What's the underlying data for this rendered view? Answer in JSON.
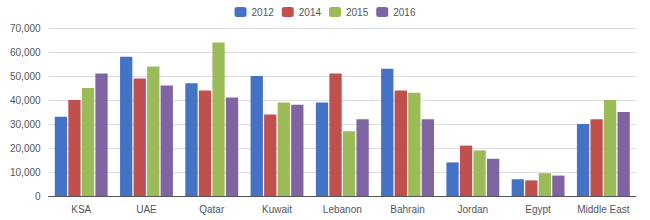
{
  "chart_data": {
    "type": "bar",
    "categories": [
      "KSA",
      "UAE",
      "Qatar",
      "Kuwait",
      "Lebanon",
      "Bahrain",
      "Jordan",
      "Egypt",
      "Middle East"
    ],
    "series": [
      {
        "name": "2012",
        "color": "#4472C4",
        "values": [
          33000,
          58000,
          47000,
          50000,
          39000,
          53000,
          14000,
          7000,
          30000
        ]
      },
      {
        "name": "2014",
        "color": "#C0504D",
        "values": [
          40000,
          49000,
          44000,
          34000,
          51000,
          44000,
          21000,
          6500,
          32000
        ]
      },
      {
        "name": "2015",
        "color": "#9BBB59",
        "values": [
          45000,
          54000,
          64000,
          39000,
          27000,
          43000,
          19000,
          9500,
          40000
        ]
      },
      {
        "name": "2016",
        "color": "#8064A2",
        "values": [
          51000,
          46000,
          41000,
          38000,
          32000,
          32000,
          15500,
          8500,
          35000
        ]
      }
    ],
    "ylim": [
      0,
      70000
    ],
    "yticks": [
      0,
      {
        "value": 10000,
        "label": "10,000"
      },
      {
        "value": 20000,
        "label": "20,000"
      },
      {
        "value": 30000,
        "label": "30,000"
      },
      {
        "value": 40000,
        "label": "40,000"
      },
      {
        "value": 50000,
        "label": "50,000"
      },
      {
        "value": 60000,
        "label": "60,000"
      },
      {
        "value": 70000,
        "label": "70,000"
      }
    ],
    "grid": true,
    "legend": "top"
  }
}
